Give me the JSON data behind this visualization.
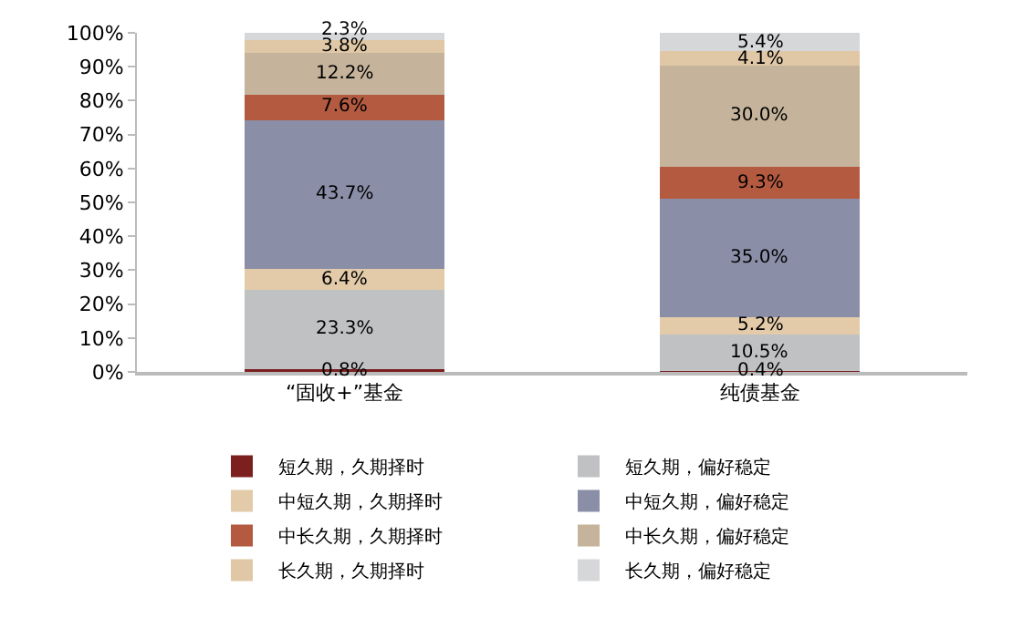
{
  "chart_data": {
    "type": "bar",
    "stacked": true,
    "categories": [
      "“固收+”基金",
      "纯债基金"
    ],
    "series": [
      {
        "name": "短久期，久期择时",
        "color": "#7b1f1f",
        "values": [
          0.8,
          0.4
        ],
        "value_labels": [
          "0.8%",
          "0.4%"
        ]
      },
      {
        "name": "短久期，偏好稳定",
        "color": "#c0c1c3",
        "values": [
          23.3,
          10.5
        ],
        "value_labels": [
          "23.3%",
          "10.5%"
        ]
      },
      {
        "name": "中短久期，久期择时",
        "color": "#e3cba9",
        "values": [
          6.4,
          5.2
        ],
        "value_labels": [
          "6.4%",
          "5.2%"
        ]
      },
      {
        "name": "中短久期，偏好稳定",
        "color": "#8a8ea7",
        "values": [
          43.7,
          35.0
        ],
        "value_labels": [
          "43.7%",
          "35.0%"
        ]
      },
      {
        "name": "中长久期，久期择时",
        "color": "#b45a40",
        "values": [
          7.6,
          9.3
        ],
        "value_labels": [
          "7.6%",
          "9.3%"
        ]
      },
      {
        "name": "中长久期，偏好稳定",
        "color": "#c5b49b",
        "values": [
          12.2,
          30.0
        ],
        "value_labels": [
          "12.2%",
          "30.0%"
        ]
      },
      {
        "name": "长久期，久期择时",
        "color": "#e0c8a6",
        "values": [
          3.8,
          4.1
        ],
        "value_labels": [
          "3.8%",
          "4.1%"
        ]
      },
      {
        "name": "长久期，偏好稳定",
        "color": "#d6d7d9",
        "values": [
          2.3,
          5.4
        ],
        "value_labels": [
          "2.3%",
          "5.4%"
        ]
      }
    ],
    "ylim": [
      0,
      100
    ],
    "yticks": [
      {
        "value": 0,
        "label": "0%"
      },
      {
        "value": 10,
        "label": "10%"
      },
      {
        "value": 20,
        "label": "20%"
      },
      {
        "value": 30,
        "label": "30%"
      },
      {
        "value": 40,
        "label": "40%"
      },
      {
        "value": 50,
        "label": "50%"
      },
      {
        "value": 60,
        "label": "60%"
      },
      {
        "value": 70,
        "label": "70%"
      },
      {
        "value": 80,
        "label": "80%"
      },
      {
        "value": 90,
        "label": "90%"
      },
      {
        "value": 100,
        "label": "100%"
      }
    ],
    "legend": "bottom"
  }
}
